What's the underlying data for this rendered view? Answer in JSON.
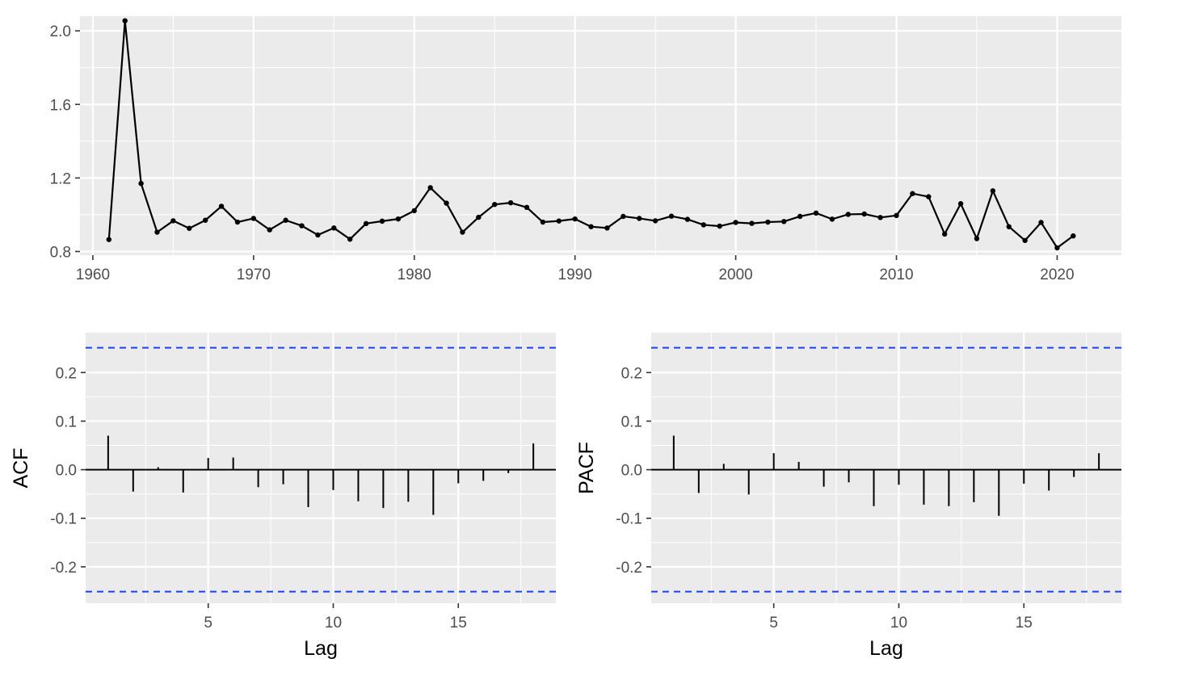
{
  "colors": {
    "panel_background": "#ebebeb",
    "grid_major": "#ffffff",
    "series": "#000000",
    "confidence_band": "#1f3ff0",
    "tick_text": "#4d4d4d"
  },
  "chart_data": [
    {
      "type": "line",
      "markers": true,
      "title": "",
      "xlabel": "",
      "ylabel": "",
      "xlim": [
        1959.2,
        2024.0
      ],
      "ylim": [
        0.78,
        2.08
      ],
      "xticks": [
        1960,
        1970,
        1980,
        1990,
        2000,
        2010,
        2020
      ],
      "yticks": [
        0.8,
        1.2,
        1.6,
        2.0
      ],
      "ytick_labels": [
        "0.8",
        "1.2",
        "1.6",
        "2.0"
      ],
      "grid": true,
      "x": [
        1961,
        1962,
        1963,
        1964,
        1965,
        1966,
        1967,
        1968,
        1969,
        1970,
        1971,
        1972,
        1973,
        1974,
        1975,
        1976,
        1977,
        1978,
        1979,
        1980,
        1981,
        1982,
        1983,
        1984,
        1985,
        1986,
        1987,
        1988,
        1989,
        1990,
        1991,
        1992,
        1993,
        1994,
        1995,
        1996,
        1997,
        1998,
        1999,
        2000,
        2001,
        2002,
        2003,
        2004,
        2005,
        2006,
        2007,
        2008,
        2009,
        2010,
        2011,
        2012,
        2013,
        2014,
        2015,
        2016,
        2017,
        2018,
        2019,
        2020,
        2021
      ],
      "y": [
        0.865,
        2.055,
        1.17,
        0.905,
        0.967,
        0.926,
        0.97,
        1.046,
        0.96,
        0.98,
        0.918,
        0.97,
        0.94,
        0.89,
        0.928,
        0.867,
        0.952,
        0.965,
        0.977,
        1.022,
        1.147,
        1.063,
        0.905,
        0.986,
        1.056,
        1.065,
        1.04,
        0.96,
        0.966,
        0.977,
        0.935,
        0.928,
        0.991,
        0.98,
        0.967,
        0.992,
        0.975,
        0.945,
        0.938,
        0.958,
        0.953,
        0.96,
        0.963,
        0.991,
        1.009,
        0.976,
        1.002,
        1.004,
        0.985,
        0.996,
        1.115,
        1.098,
        0.895,
        1.06,
        0.87,
        1.13,
        0.935,
        0.86,
        0.958,
        0.82,
        0.885
      ]
    },
    {
      "type": "bar",
      "title": "",
      "xlabel": "Lag",
      "ylabel": "ACF",
      "xlim": [
        0.1,
        18.9
      ],
      "ylim": [
        -0.275,
        0.282
      ],
      "xticks": [
        5,
        10,
        15
      ],
      "yticks": [
        -0.2,
        -0.1,
        0.0,
        0.1,
        0.2
      ],
      "ytick_labels": [
        "-0.2",
        "-0.1",
        "0.0",
        "0.1",
        "0.2"
      ],
      "grid": true,
      "confidence_limits": [
        0.251,
        -0.251
      ],
      "x": [
        1,
        2,
        3,
        4,
        5,
        6,
        7,
        8,
        9,
        10,
        11,
        12,
        13,
        14,
        15,
        16,
        17,
        18
      ],
      "values": [
        0.07,
        -0.045,
        0.005,
        -0.047,
        0.024,
        0.025,
        -0.036,
        -0.03,
        -0.077,
        -0.042,
        -0.065,
        -0.079,
        -0.066,
        -0.093,
        -0.028,
        -0.023,
        -0.007,
        0.054
      ]
    },
    {
      "type": "bar",
      "title": "",
      "xlabel": "Lag",
      "ylabel": "PACF",
      "xlim": [
        0.1,
        18.9
      ],
      "ylim": [
        -0.275,
        0.282
      ],
      "xticks": [
        5,
        10,
        15
      ],
      "yticks": [
        -0.2,
        -0.1,
        0.0,
        0.1,
        0.2
      ],
      "ytick_labels": [
        "-0.2",
        "-0.1",
        "0.0",
        "0.1",
        "0.2"
      ],
      "grid": true,
      "confidence_limits": [
        0.251,
        -0.251
      ],
      "x": [
        1,
        2,
        3,
        4,
        5,
        6,
        7,
        8,
        9,
        10,
        11,
        12,
        13,
        14,
        15,
        16,
        17,
        18
      ],
      "values": [
        0.07,
        -0.048,
        0.012,
        -0.051,
        0.034,
        0.016,
        -0.035,
        -0.026,
        -0.075,
        -0.031,
        -0.072,
        -0.075,
        -0.067,
        -0.095,
        -0.029,
        -0.043,
        -0.015,
        0.034
      ]
    }
  ]
}
